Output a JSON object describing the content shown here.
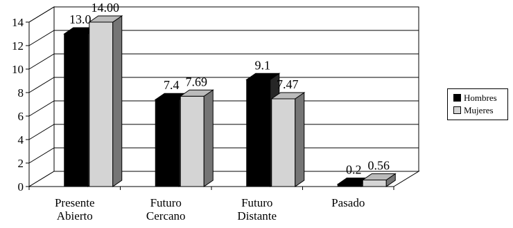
{
  "chart_data": {
    "type": "bar",
    "categories": [
      [
        "Presente",
        "Abierto"
      ],
      [
        "Futuro",
        "Cercano"
      ],
      [
        "Futuro",
        "Distante"
      ],
      [
        "Pasado"
      ]
    ],
    "series": [
      {
        "name": "Hombres",
        "values": [
          13.0,
          7.4,
          9.1,
          0.2
        ],
        "labels": [
          "13.0",
          "7.4",
          "9.1",
          "0.2"
        ],
        "color": "#000000"
      },
      {
        "name": "Mujeres",
        "values": [
          14.0,
          7.69,
          7.47,
          0.56
        ],
        "labels": [
          "14.00",
          "7.69",
          "7.47",
          "0.56"
        ],
        "color": "#d4d4d4"
      }
    ],
    "yticks": [
      "0",
      "2",
      "4",
      "6",
      "8",
      "10",
      "12",
      "14"
    ],
    "ylim": [
      0,
      14
    ],
    "grid": true,
    "three_d": true,
    "legend_position": "right"
  }
}
